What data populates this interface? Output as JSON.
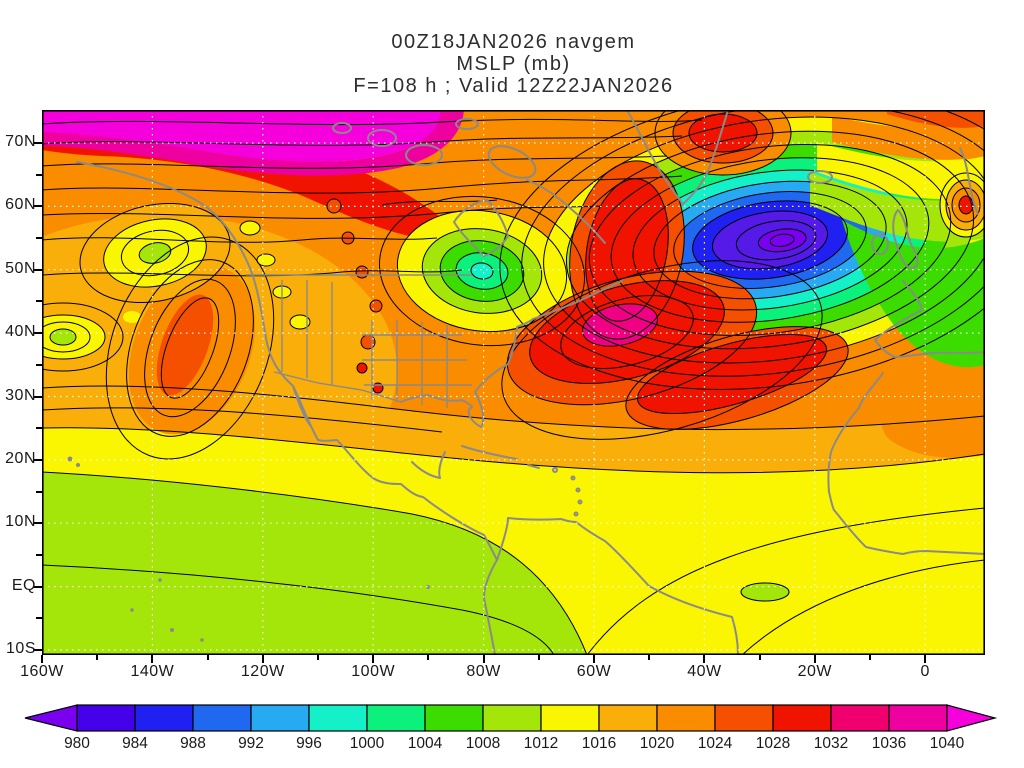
{
  "header": {
    "line1": "00Z18JAN2026 navgem",
    "line2": "MSLP (mb)",
    "line3": "F=108 h ; Valid 12Z22JAN2026"
  },
  "chart_data": {
    "type": "heatmap",
    "subtype": "filled-contour-weather-map",
    "title": "00Z18JAN2026 navgem",
    "subtitle": "MSLP (mb)",
    "forecast_label": "F=108 h ; Valid 12Z22JAN2026",
    "model": "navgem",
    "variable": "MSLP",
    "units": "mb",
    "init_time": "00Z18JAN2026",
    "forecast_hour_h": 108,
    "valid_time": "12Z22JAN2026",
    "x_axis": {
      "label": "longitude",
      "ticks": [
        "160W",
        "140W",
        "120W",
        "100W",
        "80W",
        "60W",
        "40W",
        "20W",
        "0"
      ]
    },
    "y_axis": {
      "label": "latitude",
      "ticks": [
        "70N",
        "60N",
        "50N",
        "40N",
        "30N",
        "20N",
        "10N",
        "EQ",
        "10S"
      ]
    },
    "grid": "white dotted graticule every 10 deg lat / 20 deg lon",
    "contour_interval_mb": 2,
    "colorbar": {
      "units": "mb",
      "tick_values": [
        980,
        984,
        988,
        992,
        996,
        1000,
        1004,
        1008,
        1012,
        1016,
        1020,
        1024,
        1028,
        1032,
        1036,
        1040
      ],
      "segment_colors": [
        "#7A00F0",
        "#4400E8",
        "#2020F0",
        "#2068F0",
        "#28AAF2",
        "#14F0C8",
        "#0CF07C",
        "#3CDC00",
        "#A4E60A",
        "#FAF500",
        "#FAAE0A",
        "#FA8C00",
        "#F55000",
        "#F01400",
        "#F0006E",
        "#EE00A0",
        "#F500DC"
      ],
      "low_arrow": "values below 980 mb",
      "high_arrow": "values above 1040 mb"
    },
    "pressure_centers": [
      {
        "system": "arctic-high-band",
        "approx_position": "north of 70N, 160W-110W",
        "pressure_mb": "> 1040"
      },
      {
        "system": "gulf-of-alaska-low",
        "approx_position": "~53N 141W",
        "pressure_mb": "~1008"
      },
      {
        "system": "low-west-of-160w",
        "approx_position": "~37N 157W",
        "pressure_mb": "~1010"
      },
      {
        "system": "northeast-pacific-ridge",
        "approx_position": "~36N 136W",
        "pressure_mb": "~1026"
      },
      {
        "system": "hudson-bay-low",
        "approx_position": "~50N 80W",
        "pressure_mb": "~996"
      },
      {
        "system": "north-atlantic-low",
        "approx_position": "~55N 28W",
        "pressure_mb": "< 980"
      },
      {
        "system": "western-atlantic-high",
        "approx_position": "~38N 57W",
        "pressure_mb": "~1034"
      },
      {
        "system": "greenland-area-high",
        "approx_position": "~72N 50W",
        "pressure_mb": "~1032"
      },
      {
        "system": "small-high-near-scotland",
        "approx_position": "~60N 7W",
        "pressure_mb": "~1028"
      }
    ],
    "map_colors": {
      "coastline": "#8A8A8A",
      "contour_lines": "#000000",
      "grid_dots": "#FFFFFF",
      "dominant_fill": "#FA8C00"
    }
  }
}
